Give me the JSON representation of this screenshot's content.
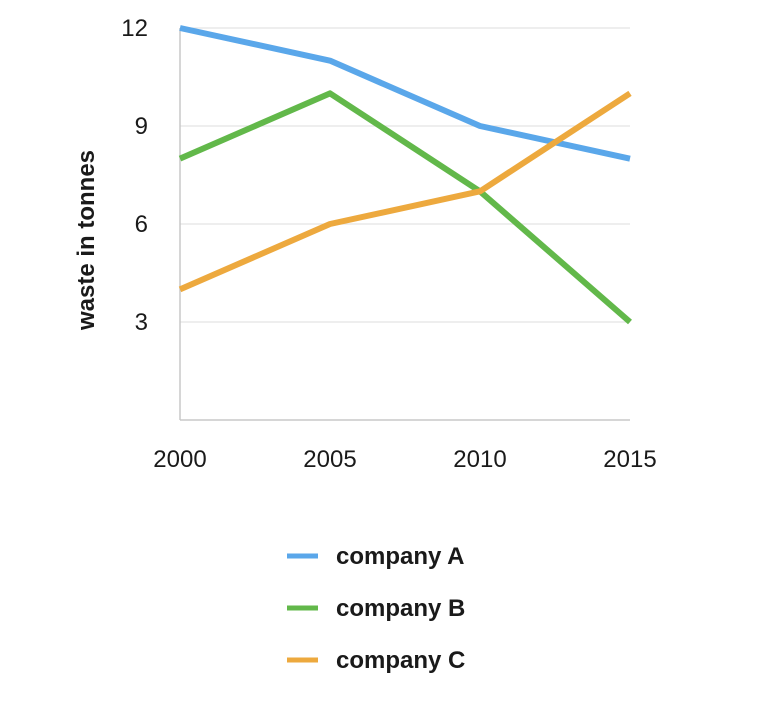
{
  "chart_data": {
    "type": "line",
    "title": "",
    "xlabel": "",
    "ylabel": "waste in tonnes",
    "x": [
      2000,
      2005,
      2010,
      2015
    ],
    "xlim": [
      2000,
      2015
    ],
    "ylim": [
      0,
      12
    ],
    "yticks": [
      3,
      6,
      9,
      12
    ],
    "grid": "horizontal",
    "legend": "below",
    "series": [
      {
        "name": "company A",
        "color": "#5aa7ea",
        "values": [
          12,
          11,
          9,
          8
        ]
      },
      {
        "name": "company B",
        "color": "#62b84a",
        "values": [
          8,
          10,
          7,
          3
        ]
      },
      {
        "name": "company C",
        "color": "#eda93e",
        "values": [
          4,
          6,
          7,
          10
        ]
      }
    ]
  }
}
